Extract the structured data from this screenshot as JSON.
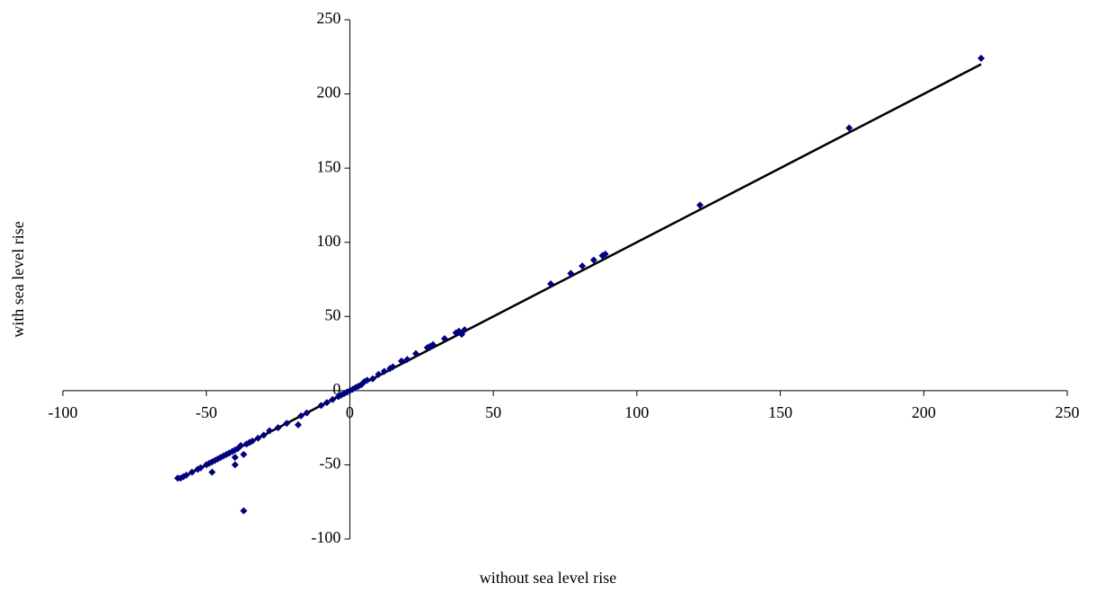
{
  "chart_data": {
    "type": "scatter",
    "x_label": "without sea level rise",
    "y_label": "with sea level rise",
    "xlim": [
      -100,
      250
    ],
    "ylim": [
      -100,
      250
    ],
    "xticks": [
      -100,
      -50,
      0,
      50,
      100,
      150,
      200,
      250
    ],
    "yticks": [
      -100,
      -50,
      0,
      50,
      100,
      150,
      200,
      250
    ],
    "series": [
      {
        "color": "#000080",
        "x": [
          220,
          174,
          122,
          89,
          88,
          85,
          81,
          77,
          70,
          40,
          39,
          38,
          37,
          33,
          29,
          28,
          27,
          23,
          20,
          18,
          15,
          14,
          12,
          10,
          8,
          6,
          5,
          4,
          3,
          2,
          1,
          0,
          -1,
          -2,
          -3,
          -4,
          -6,
          -8,
          -10,
          -15,
          -17,
          -18,
          -22,
          -25,
          -28,
          -30,
          -32,
          -34,
          -35,
          -36,
          -37,
          -37,
          -38,
          -39,
          -40,
          -40,
          -40,
          -41,
          -42,
          -43,
          -44,
          -45,
          -46,
          -47,
          -48,
          -48,
          -49,
          -50,
          -52,
          -53,
          -55,
          -57,
          -58,
          -59,
          -60
        ],
        "values": [
          224,
          177,
          125,
          92,
          91,
          88,
          84,
          79,
          72,
          41,
          38,
          40,
          39,
          35,
          31,
          30,
          29,
          25,
          21,
          20,
          16,
          15,
          13,
          11,
          8,
          7,
          6,
          4,
          3,
          2,
          1,
          0,
          -1,
          -2,
          -3,
          -4,
          -6,
          -8,
          -10,
          -15,
          -17,
          -23,
          -22,
          -25,
          -27,
          -30,
          -32,
          -34,
          -35,
          -36,
          -43,
          -81,
          -37,
          -39,
          -40,
          -45,
          -50,
          -41,
          -42,
          -43,
          -44,
          -45,
          -46,
          -47,
          -48,
          -55,
          -49,
          -50,
          -52,
          -53,
          -55,
          -57,
          -58,
          -59,
          -59
        ]
      }
    ],
    "line": {
      "color": "#000000",
      "x": [
        -60,
        220
      ],
      "values": [
        -60,
        220
      ]
    }
  }
}
